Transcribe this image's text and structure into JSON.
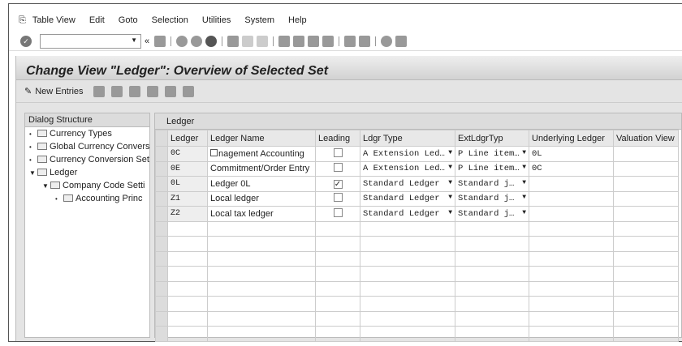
{
  "menu": [
    "Table View",
    "Edit",
    "Goto",
    "Selection",
    "Utilities",
    "System",
    "Help"
  ],
  "title": "Change View \"Ledger\": Overview of Selected Set",
  "app_toolbar": {
    "new_entries": "New Entries"
  },
  "dialog": {
    "header": "Dialog Structure",
    "items": [
      {
        "label": "Currency Types",
        "level": 0,
        "open": false
      },
      {
        "label": "Global Currency Conversi",
        "level": 0,
        "open": false
      },
      {
        "label": "Currency Conversion Set",
        "level": 0,
        "open": false
      },
      {
        "label": "Ledger",
        "level": 0,
        "open": true
      },
      {
        "label": "Company Code Setti",
        "level": 1,
        "open": true
      },
      {
        "label": "Accounting Princ",
        "level": 2,
        "open": false
      }
    ]
  },
  "table": {
    "caption": "Ledger",
    "columns": [
      "Ledger",
      "Ledger Name",
      "Leading",
      "Ldgr Type",
      "ExtLdgrTyp",
      "Underlying Ledger",
      "Valuation View"
    ],
    "rows": [
      {
        "ledger": "0C",
        "name": "nagement Accounting",
        "leading": false,
        "type": "A Extension Led…",
        "ext": "P Line item…",
        "under": "0L",
        "val": ""
      },
      {
        "ledger": "0E",
        "name": "Commitment/Order Entry",
        "leading": false,
        "type": "A Extension Led…",
        "ext": "P Line item…",
        "under": "0C",
        "val": ""
      },
      {
        "ledger": "0L",
        "name": "Ledger 0L",
        "leading": true,
        "type": "Standard Ledger",
        "ext": "Standard j…",
        "under": "",
        "val": ""
      },
      {
        "ledger": "Z1",
        "name": "Local ledger",
        "leading": false,
        "type": "Standard Ledger",
        "ext": "Standard j…",
        "under": "",
        "val": ""
      },
      {
        "ledger": "Z2",
        "name": "Local tax ledger",
        "leading": false,
        "type": "Standard Ledger",
        "ext": "Standard j…",
        "under": "",
        "val": ""
      }
    ]
  }
}
